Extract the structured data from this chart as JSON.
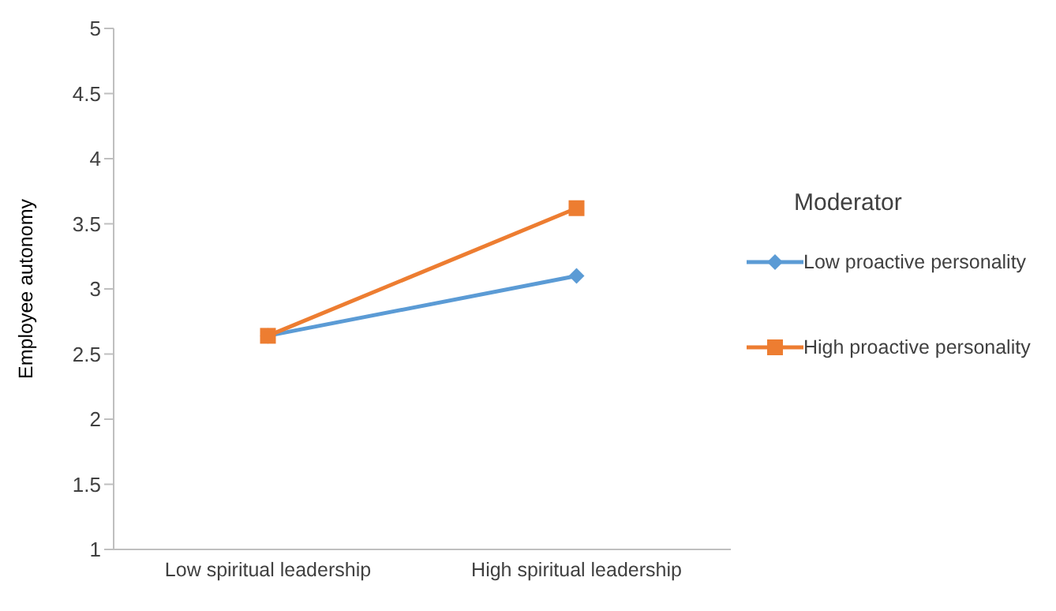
{
  "chart_data": {
    "type": "line",
    "ylabel": "Employee autonomy",
    "legend_title": "Moderator",
    "categories": [
      "Low spiritual leadership",
      "High spiritual leadership"
    ],
    "series": [
      {
        "name": "Low proactive personality",
        "color": "#5b9bd5",
        "values": [
          2.64,
          3.1
        ],
        "marker": "diamond"
      },
      {
        "name": "High proactive personality",
        "color": "#ed7d31",
        "values": [
          2.64,
          3.62
        ],
        "marker": "square"
      }
    ],
    "ylim": [
      1,
      5
    ],
    "yticks": [
      1,
      1.5,
      2,
      2.5,
      3,
      3.5,
      4,
      4.5,
      5
    ],
    "grid": false,
    "legend": "right",
    "line_style": "solid"
  }
}
